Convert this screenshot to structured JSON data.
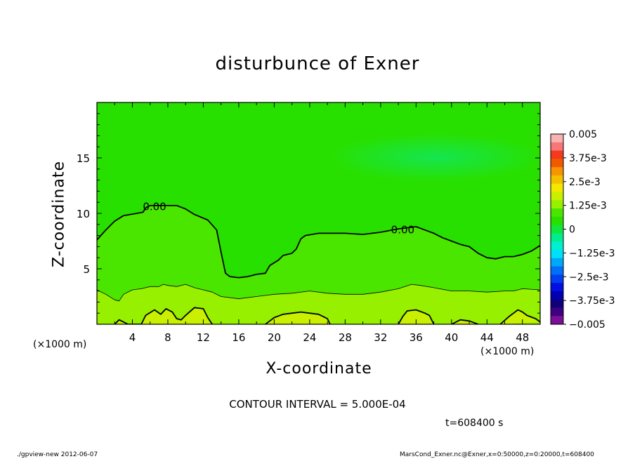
{
  "chart_data": {
    "type": "heatmap",
    "title": "disturbunce of Exner",
    "xlabel": "X-coordinate",
    "ylabel": "Z-coordinate",
    "x_unit_left": "(×1000 m)",
    "x_unit_right": "(×1000 m)",
    "xlim": [
      0,
      50
    ],
    "ylim": [
      0,
      20
    ],
    "x_ticks": [
      4,
      8,
      12,
      16,
      20,
      24,
      28,
      32,
      36,
      40,
      44,
      48
    ],
    "y_ticks": [
      5,
      10,
      15
    ],
    "colorbar": {
      "labels": [
        "0.005",
        "3.75e-3",
        "2.5e-3",
        "1.25e-3",
        "0",
        "−1.25e-3",
        "−2.5e-3",
        "−3.75e-3",
        "−0.005"
      ],
      "range": [
        -0.005,
        0.005
      ],
      "colors_top_to_bottom": [
        "#f7b2b2",
        "#f77777",
        "#f43a1c",
        "#f25a00",
        "#f59500",
        "#f5c000",
        "#f2e800",
        "#c8f000",
        "#96f000",
        "#4be600",
        "#28e000",
        "#12e63a",
        "#00ee8c",
        "#00f0d0",
        "#00e0f8",
        "#00a8f8",
        "#0070f8",
        "#0040f0",
        "#0010e0",
        "#0000b0",
        "#10007c",
        "#400080",
        "#7a1098"
      ]
    },
    "zero_contour_label": "0.00",
    "contour_labels": [
      {
        "text": "0.00",
        "x": 6.5,
        "z": 10.6
      },
      {
        "text": "0.00",
        "x": 34.5,
        "z": 8.5
      }
    ],
    "contours": [
      {
        "level": 0,
        "style": "thick",
        "points": [
          [
            0,
            7.6
          ],
          [
            1,
            8.5
          ],
          [
            2,
            9.3
          ],
          [
            3,
            9.8
          ],
          [
            4.5,
            10.0
          ],
          [
            5.2,
            10.1
          ],
          [
            5.5,
            10.5
          ],
          [
            6,
            10.7
          ],
          [
            7.5,
            10.7
          ],
          [
            9,
            10.7
          ],
          [
            10,
            10.4
          ],
          [
            11,
            9.9
          ],
          [
            12.5,
            9.4
          ],
          [
            13.5,
            8.5
          ],
          [
            14,
            6.5
          ],
          [
            14.5,
            4.6
          ],
          [
            15,
            4.3
          ],
          [
            16,
            4.2
          ],
          [
            17,
            4.3
          ],
          [
            18,
            4.5
          ],
          [
            19,
            4.6
          ],
          [
            19.5,
            5.3
          ],
          [
            20.5,
            5.8
          ],
          [
            21,
            6.2
          ],
          [
            22,
            6.4
          ],
          [
            22.5,
            6.8
          ],
          [
            23,
            7.7
          ],
          [
            23.5,
            8.0
          ],
          [
            25,
            8.2
          ],
          [
            28,
            8.2
          ],
          [
            30,
            8.1
          ],
          [
            32,
            8.3
          ],
          [
            34,
            8.6
          ],
          [
            36,
            8.8
          ],
          [
            37,
            8.5
          ],
          [
            38,
            8.2
          ],
          [
            39,
            7.8
          ],
          [
            40,
            7.5
          ],
          [
            41,
            7.2
          ],
          [
            42,
            7.0
          ],
          [
            43,
            6.4
          ],
          [
            44,
            6.0
          ],
          [
            45,
            5.9
          ],
          [
            46,
            6.1
          ],
          [
            47,
            6.1
          ],
          [
            48,
            6.3
          ],
          [
            49,
            6.6
          ],
          [
            50,
            7.1
          ]
        ]
      },
      {
        "level": 0.0005,
        "style": "thin",
        "points": [
          [
            0,
            3.1
          ],
          [
            1,
            2.7
          ],
          [
            2,
            2.2
          ],
          [
            2.5,
            2.1
          ],
          [
            3,
            2.7
          ],
          [
            4,
            3.1
          ],
          [
            5,
            3.2
          ],
          [
            6,
            3.4
          ],
          [
            7,
            3.4
          ],
          [
            7.5,
            3.6
          ],
          [
            8,
            3.5
          ],
          [
            9,
            3.4
          ],
          [
            10,
            3.6
          ],
          [
            11,
            3.3
          ],
          [
            12,
            3.1
          ],
          [
            13,
            2.9
          ],
          [
            14,
            2.5
          ],
          [
            16,
            2.3
          ],
          [
            18,
            2.5
          ],
          [
            20,
            2.7
          ],
          [
            22,
            2.8
          ],
          [
            24,
            3.0
          ],
          [
            26,
            2.8
          ],
          [
            28,
            2.7
          ],
          [
            30,
            2.7
          ],
          [
            32,
            2.9
          ],
          [
            34,
            3.2
          ],
          [
            35.5,
            3.6
          ],
          [
            36.5,
            3.5
          ],
          [
            38,
            3.3
          ],
          [
            40,
            3.0
          ],
          [
            42,
            3.0
          ],
          [
            44,
            2.9
          ],
          [
            46,
            3.0
          ],
          [
            47,
            3.0
          ],
          [
            48,
            3.2
          ],
          [
            50,
            3.1
          ]
        ]
      },
      {
        "level": 0,
        "style": "thick",
        "points": [
          [
            2,
            0
          ],
          [
            2.5,
            0.4
          ],
          [
            3,
            0.2
          ],
          [
            3.5,
            0
          ],
          [
            5,
            0
          ],
          [
            5.5,
            0.8
          ],
          [
            6.5,
            1.3
          ],
          [
            7.2,
            0.9
          ],
          [
            7.8,
            1.4
          ],
          [
            8.5,
            1.1
          ],
          [
            9,
            0.5
          ],
          [
            9.5,
            0.4
          ],
          [
            10,
            0.8
          ],
          [
            11,
            1.5
          ],
          [
            12,
            1.4
          ],
          [
            12.5,
            0.6
          ],
          [
            13,
            0
          ]
        ]
      },
      {
        "level": 0,
        "style": "thick",
        "points": [
          [
            19,
            0
          ],
          [
            20,
            0.6
          ],
          [
            21,
            0.9
          ],
          [
            23,
            1.1
          ],
          [
            25,
            0.9
          ],
          [
            26,
            0.5
          ],
          [
            26.3,
            0
          ]
        ]
      },
      {
        "level": 0,
        "style": "thick",
        "points": [
          [
            34,
            0
          ],
          [
            34.5,
            0.7
          ],
          [
            35,
            1.2
          ],
          [
            36,
            1.3
          ],
          [
            37,
            1.0
          ],
          [
            37.5,
            0.8
          ],
          [
            38,
            0
          ]
        ]
      },
      {
        "level": 0,
        "style": "thick",
        "points": [
          [
            40,
            0
          ],
          [
            41,
            0.4
          ],
          [
            42,
            0.3
          ],
          [
            43,
            0
          ]
        ]
      },
      {
        "level": 0,
        "style": "thick",
        "points": [
          [
            45.5,
            0
          ],
          [
            46.5,
            0.7
          ],
          [
            47,
            1.0
          ],
          [
            47.5,
            1.3
          ],
          [
            48,
            1.1
          ],
          [
            48.5,
            0.8
          ],
          [
            49.5,
            0.5
          ],
          [
            50,
            0.2
          ]
        ]
      }
    ]
  },
  "contour_interval": "CONTOUR INTERVAL = 5.000E-04",
  "time_label": "t=608400 s",
  "footer_left": "./gpview-new   2012-06-07",
  "footer_right": "MarsCond_Exner.nc@Exner,x=0:50000,z=0:20000,t=608400"
}
